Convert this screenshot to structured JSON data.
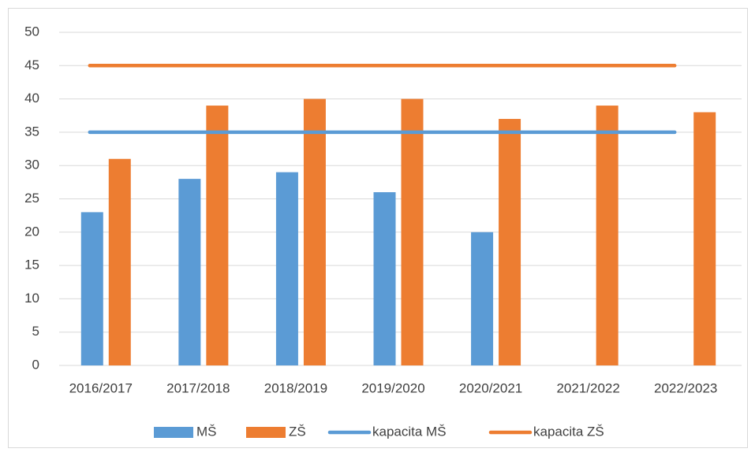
{
  "chart_data": {
    "type": "bar",
    "categories": [
      "2016/2017",
      "2017/2018",
      "2018/2019",
      "2019/2020",
      "2020/2021",
      "2021/2022",
      "2022/2023"
    ],
    "series": [
      {
        "name": "MŠ",
        "color": "#5b9bd5",
        "type": "bar",
        "values": [
          23,
          28,
          29,
          26,
          20,
          null,
          null
        ]
      },
      {
        "name": "ZŠ",
        "color": "#ed7d31",
        "type": "bar",
        "values": [
          31,
          39,
          40,
          40,
          37,
          39,
          38
        ]
      },
      {
        "name": "kapacita MŠ",
        "color": "#5b9bd5",
        "type": "line",
        "values": [
          35,
          35,
          35,
          35,
          35,
          35,
          35
        ]
      },
      {
        "name": "kapacita ZŠ",
        "color": "#ed7d31",
        "type": "line",
        "values": [
          45,
          45,
          45,
          45,
          45,
          45,
          45
        ]
      }
    ],
    "ylim": [
      0,
      50
    ],
    "yticks": [
      0,
      5,
      10,
      15,
      20,
      25,
      30,
      35,
      40,
      45,
      50
    ],
    "grid": true,
    "legend": "bottom"
  }
}
